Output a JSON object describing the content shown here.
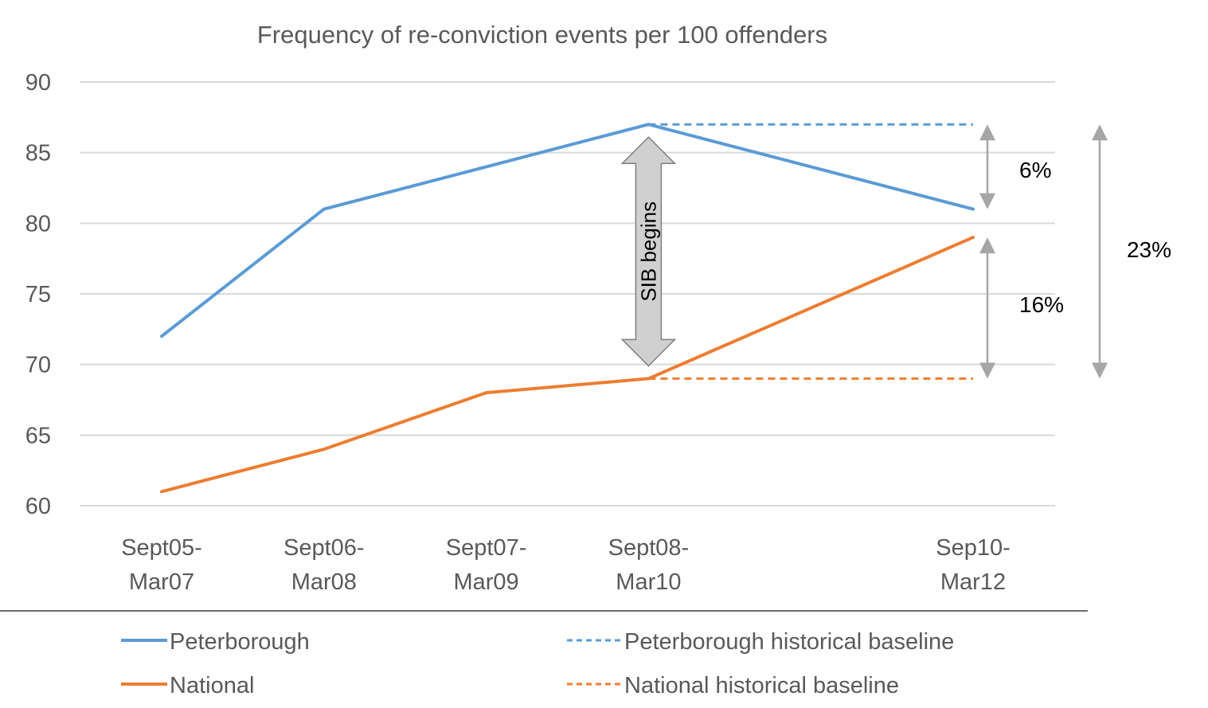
{
  "chart_data": {
    "type": "line",
    "title": "Frequency of re-conviction events per 100 offenders",
    "xlabel": "",
    "ylabel": "",
    "ylim": [
      60,
      90
    ],
    "yticks": [
      60,
      65,
      70,
      75,
      80,
      85,
      90
    ],
    "grid": true,
    "legend_position": "bottom",
    "categories": [
      [
        "Sept05-",
        "Mar07"
      ],
      [
        "Sept06-",
        "Mar08"
      ],
      [
        "Sept07-",
        "Mar09"
      ],
      [
        "Sept08-",
        "Mar10"
      ],
      [
        "Sep10-",
        "Mar12"
      ]
    ],
    "x_positions": [
      0,
      1,
      2,
      3,
      5
    ],
    "series": [
      {
        "name": "Peterborough",
        "style": "solid",
        "color": "#5B9BD5",
        "values": [
          72,
          81,
          84,
          87,
          81
        ]
      },
      {
        "name": "National",
        "style": "solid",
        "color": "#ED7D31",
        "values": [
          61,
          64,
          68,
          69,
          79
        ]
      },
      {
        "name": "Peterborough historical baseline",
        "style": "dashed",
        "color": "#5B9BD5",
        "from_index": 3,
        "to_index": 4,
        "value": 87
      },
      {
        "name": "National historical baseline",
        "style": "dashed",
        "color": "#ED7D31",
        "from_index": 3,
        "to_index": 4,
        "value": 69
      }
    ],
    "annotations": {
      "sib_label": "SIB begins",
      "sib_range": [
        69,
        87
      ],
      "sib_index": 3,
      "peterborough_change": {
        "label": "6%",
        "range": [
          81,
          87
        ]
      },
      "national_change": {
        "label": "16%",
        "range": [
          69,
          79
        ]
      },
      "total_change": {
        "label": "23%",
        "range": [
          69,
          87
        ]
      }
    },
    "colors": {
      "peterborough": "#5B9BD5",
      "national": "#ED7D31",
      "grid": "#D9D9D9",
      "text": "#595959",
      "arrow": "#A6A6A6",
      "sib_fill": "#D0D0D0",
      "sib_stroke": "#7F7F7F"
    }
  }
}
